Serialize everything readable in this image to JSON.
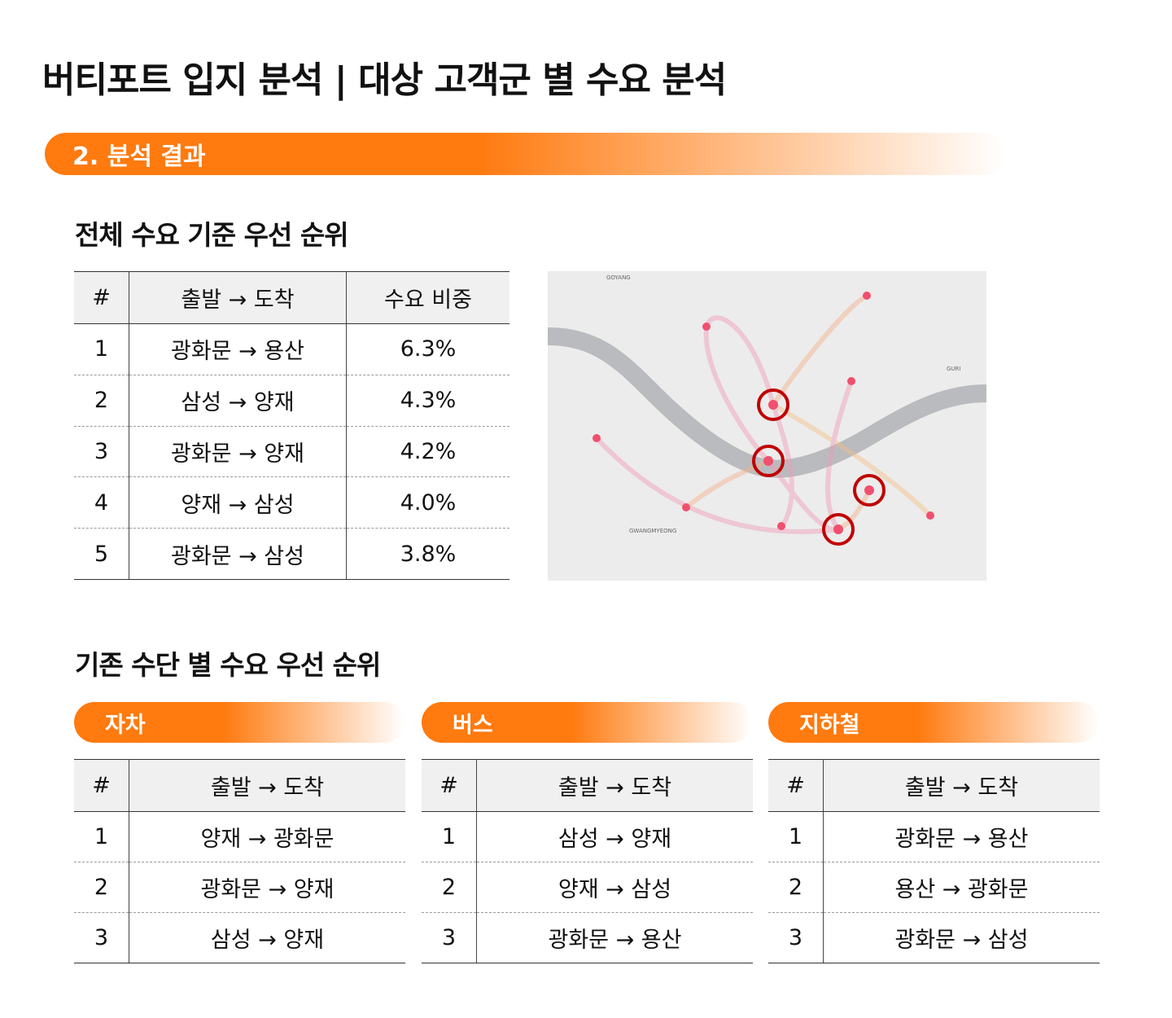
{
  "title": "버티포트 입지 분석 | 대상 고객군 별 수요 분석",
  "section": "2. 분석 결과",
  "overall": {
    "heading": "전체 수요 기준 우선 순위",
    "columns": [
      "#",
      "출발 → 도착",
      "수요 비중"
    ],
    "rows": [
      [
        "1",
        "광화문 → 용산",
        "6.3%"
      ],
      [
        "2",
        "삼성 → 양재",
        "4.3%"
      ],
      [
        "3",
        "광화문 → 양재",
        "4.2%"
      ],
      [
        "4",
        "양재 → 삼성",
        "4.0%"
      ],
      [
        "5",
        "광화문 → 삼성",
        "3.8%"
      ]
    ]
  },
  "map": {
    "labels": [
      "GOYANG",
      "GURI",
      "GWANGMYEONG"
    ]
  },
  "by_mode": {
    "heading": "기존 수단 별 수요 우선 순위",
    "modes": [
      {
        "name": "자차",
        "columns": [
          "#",
          "출발 → 도착"
        ],
        "rows": [
          [
            "1",
            "양재 → 광화문"
          ],
          [
            "2",
            "광화문 → 양재"
          ],
          [
            "3",
            "삼성 → 양재"
          ]
        ]
      },
      {
        "name": "버스",
        "columns": [
          "#",
          "출발 → 도착"
        ],
        "rows": [
          [
            "1",
            "삼성 → 양재"
          ],
          [
            "2",
            "양재 → 삼성"
          ],
          [
            "3",
            "광화문 → 용산"
          ]
        ]
      },
      {
        "name": "지하철",
        "columns": [
          "#",
          "출발 → 도착"
        ],
        "rows": [
          [
            "1",
            "광화문 → 용산"
          ],
          [
            "2",
            "용산 → 광화문"
          ],
          [
            "3",
            "광화문 → 삼성"
          ]
        ]
      }
    ]
  }
}
